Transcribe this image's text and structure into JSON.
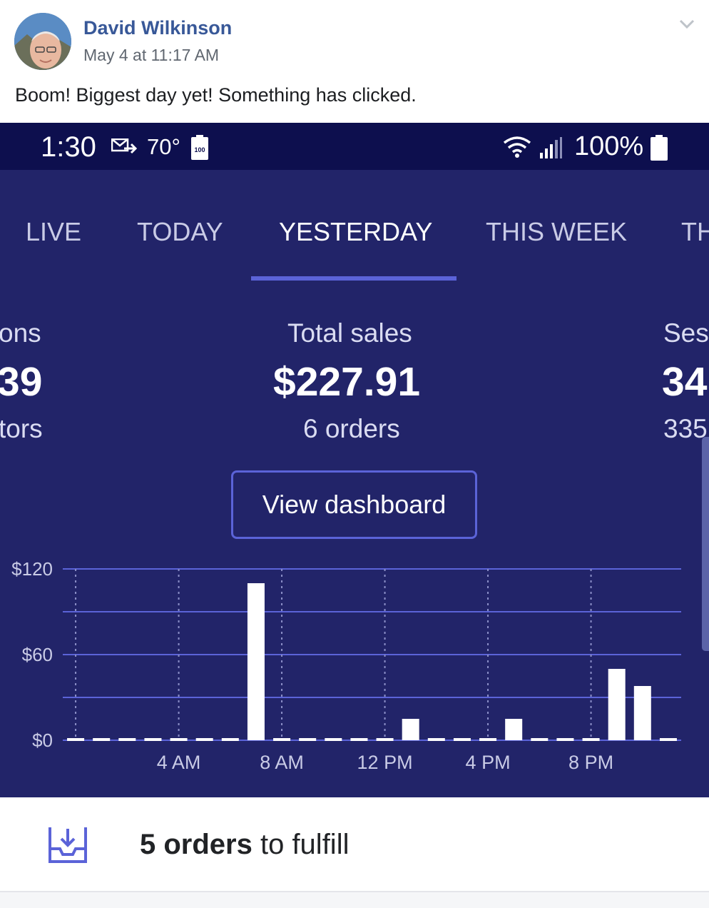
{
  "post": {
    "author": "David Wilkinson",
    "timestamp": "May 4 at 11:17 AM",
    "text": "Boom! Biggest day yet! Something has clicked."
  },
  "status_bar": {
    "time": "1:30",
    "temperature": "70°",
    "small_battery_label": "100",
    "battery_percent": "100%"
  },
  "tabs": [
    {
      "label": "LIVE",
      "active": false
    },
    {
      "label": "TODAY",
      "active": false
    },
    {
      "label": "YESTERDAY",
      "active": true
    },
    {
      "label": "THIS WEEK",
      "active": false
    },
    {
      "label": "TH",
      "active": false
    }
  ],
  "metrics": {
    "left": {
      "label": "ons",
      "value": "39",
      "sub": "tors"
    },
    "center": {
      "label": "Total sales",
      "value": "$227.91",
      "sub": "6 orders"
    },
    "right": {
      "label": "Ses",
      "value": "34",
      "sub": "335"
    }
  },
  "dashboard_button": "View dashboard",
  "chart_data": {
    "type": "bar",
    "title": "",
    "xlabel": "",
    "ylabel": "",
    "ylim": [
      0,
      120
    ],
    "y_ticks": [
      "$0",
      "$60",
      "$120"
    ],
    "x_ticks": [
      "4 AM",
      "8 AM",
      "12 PM",
      "4 PM",
      "8 PM"
    ],
    "categories": [
      "12 AM",
      "1 AM",
      "2 AM",
      "3 AM",
      "4 AM",
      "5 AM",
      "6 AM",
      "7 AM",
      "8 AM",
      "9 AM",
      "10 AM",
      "11 AM",
      "12 PM",
      "1 PM",
      "2 PM",
      "3 PM",
      "4 PM",
      "5 PM",
      "6 PM",
      "7 PM",
      "8 PM",
      "9 PM",
      "10 PM",
      "11 PM"
    ],
    "values": [
      0,
      0,
      0,
      0,
      0,
      0,
      0,
      110,
      0,
      0,
      0,
      0,
      0,
      15,
      0,
      0,
      0,
      15,
      0,
      0,
      0,
      50,
      38,
      0
    ],
    "bar_color": "#ffffff",
    "grid_color": "#5b63d8"
  },
  "orders": {
    "count_text": "5 orders",
    "suffix_text": " to fulfill"
  },
  "icons": {
    "chevron": "chevron-down-icon",
    "mail": "mail-icon",
    "wifi": "wifi-icon",
    "signal": "signal-icon",
    "battery": "battery-icon",
    "inbox": "inbox-download-icon"
  },
  "colors": {
    "brand_link": "#385898",
    "phone_bg": "#222469",
    "status_bg": "#0d0f4e",
    "accent": "#5b63d8"
  }
}
